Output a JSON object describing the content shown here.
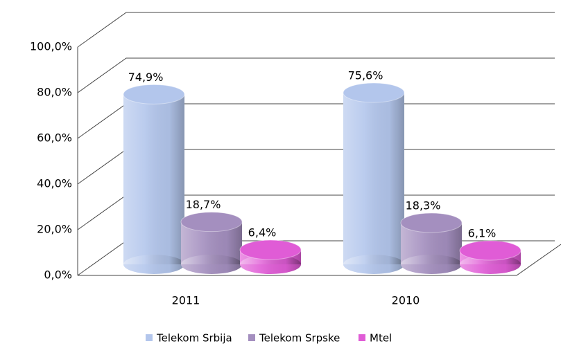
{
  "chart_data": {
    "type": "bar3d",
    "categories": [
      "2011",
      "2010"
    ],
    "series": [
      {
        "name": "Telekom Srbija",
        "color": "#b3c6ec",
        "values": [
          74.9,
          75.6
        ],
        "value_labels": [
          "74,9%",
          "75,6%"
        ]
      },
      {
        "name": "Telekom Srpske",
        "color": "#a48fbf",
        "values": [
          18.7,
          18.3
        ],
        "value_labels": [
          "18,7%",
          "18,3%"
        ]
      },
      {
        "name": "Mtel",
        "color": "#e05cd6",
        "values": [
          6.4,
          6.1
        ],
        "value_labels": [
          "6,4%",
          "6,1%"
        ]
      }
    ],
    "ylim": [
      0,
      100
    ],
    "yticks": [
      {
        "value": 0,
        "label": "0,0%"
      },
      {
        "value": 20,
        "label": "20,0%"
      },
      {
        "value": 40,
        "label": "40,0%"
      },
      {
        "value": 60,
        "label": "60,0%"
      },
      {
        "value": 80,
        "label": "80,0%"
      },
      {
        "value": 100,
        "label": "100,0%"
      }
    ],
    "grid": true,
    "legend": "bottom"
  }
}
